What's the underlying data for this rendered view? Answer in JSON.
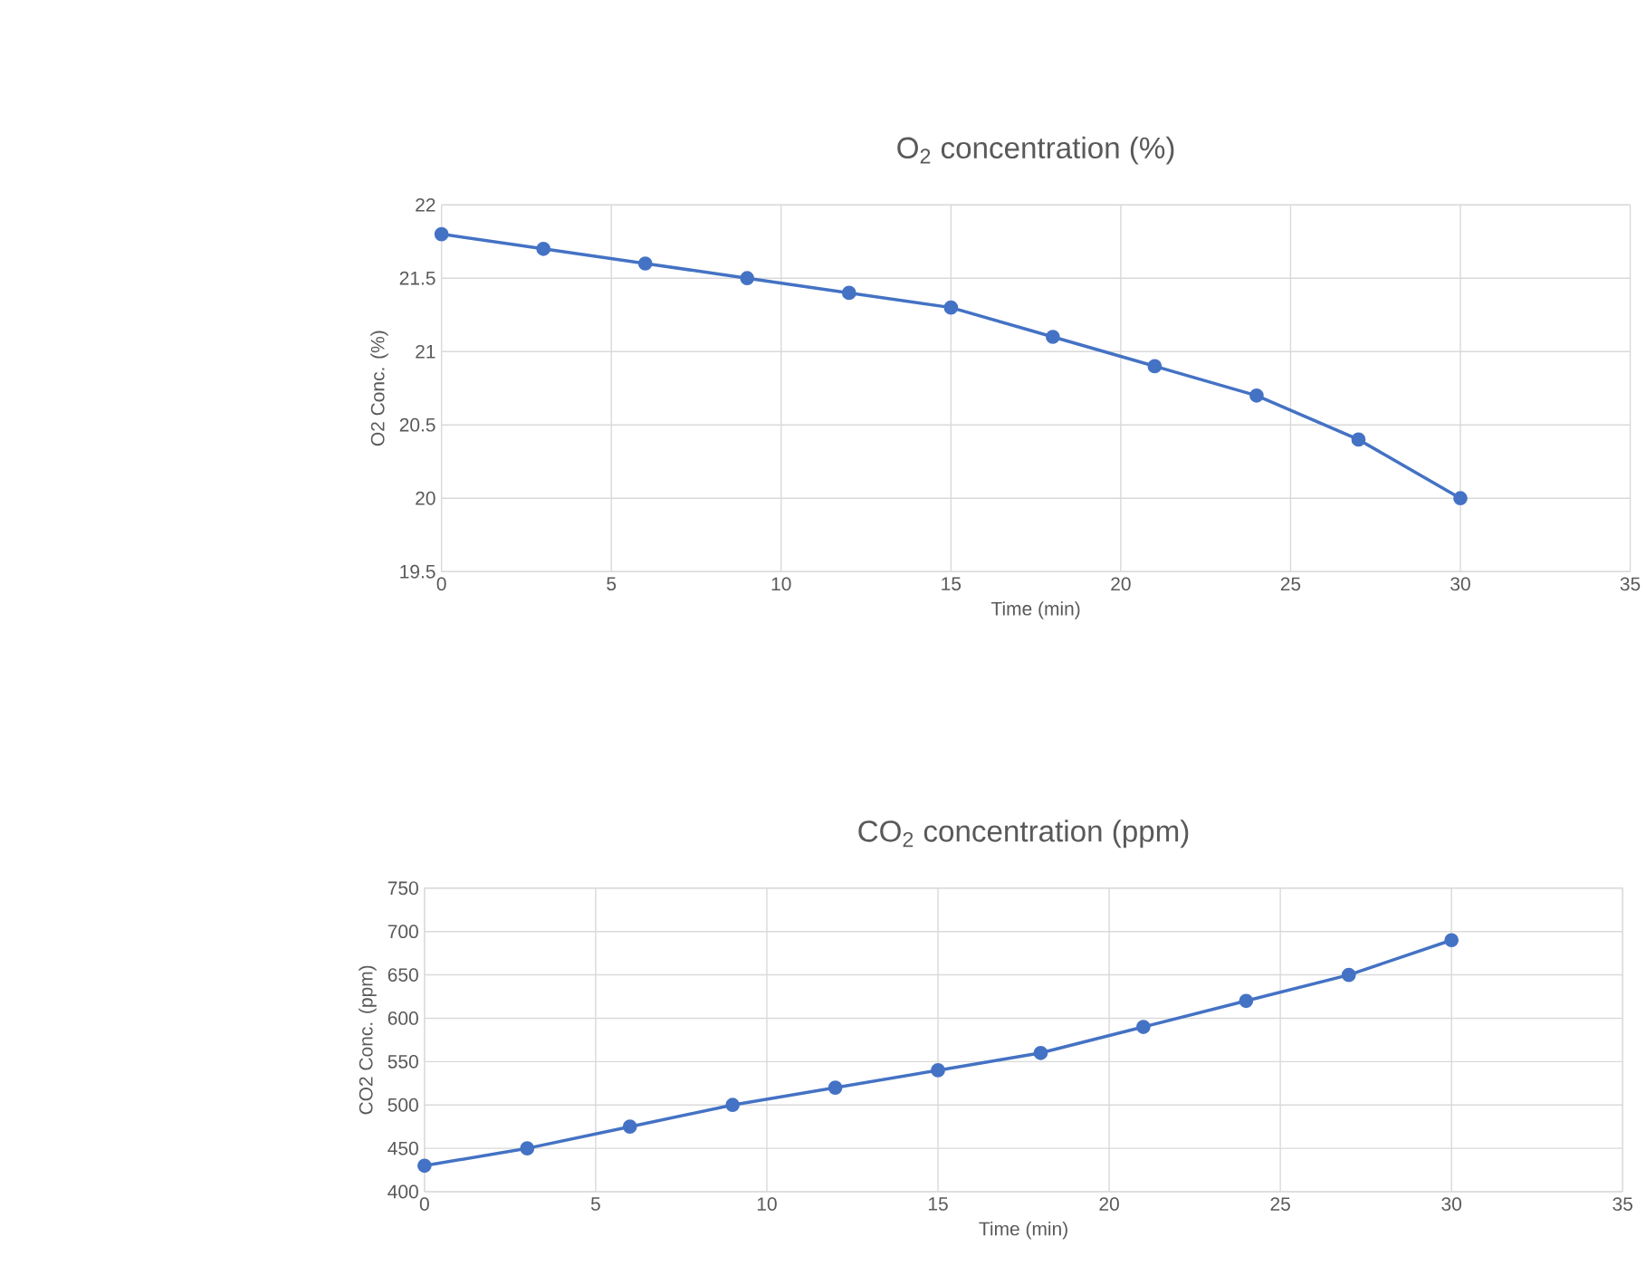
{
  "chart_data": [
    {
      "type": "line",
      "title": "O$_{2}$ concentration (%)",
      "xlabel": "Time (min)",
      "ylabel": "O2 Conc. (%)",
      "x": [
        0,
        3,
        6,
        9,
        12,
        15,
        18,
        21,
        24,
        27,
        30
      ],
      "series": [
        {
          "color": "#4472c4",
          "values": [
            21.8,
            21.7,
            21.6,
            21.5,
            21.4,
            21.3,
            21.1,
            20.9,
            20.7,
            20.4,
            20.0
          ]
        }
      ],
      "xlim": [
        0,
        35
      ],
      "xticks": [
        0,
        5,
        10,
        15,
        20,
        25,
        30,
        35
      ],
      "ylim": [
        19.5,
        22
      ],
      "yticks": [
        19.5,
        20,
        20.5,
        21,
        21.5,
        22
      ],
      "grid": true,
      "marker": "circle",
      "line_style": "solid"
    },
    {
      "type": "line",
      "title": "CO$_{2}$ concentration (ppm)",
      "xlabel": "Time (min)",
      "ylabel": "CO2 Conc. (ppm)",
      "x": [
        0,
        3,
        6,
        9,
        12,
        15,
        18,
        21,
        24,
        27,
        30
      ],
      "series": [
        {
          "color": "#4472c4",
          "values": [
            430,
            450,
            475,
            500,
            520,
            540,
            560,
            590,
            620,
            650,
            690
          ]
        }
      ],
      "xlim": [
        0,
        35
      ],
      "xticks": [
        0,
        5,
        10,
        15,
        20,
        25,
        30,
        35
      ],
      "ylim": [
        400,
        750
      ],
      "yticks": [
        400,
        450,
        500,
        550,
        600,
        650,
        700,
        750
      ],
      "grid": true,
      "marker": "circle",
      "line_style": "solid"
    }
  ]
}
